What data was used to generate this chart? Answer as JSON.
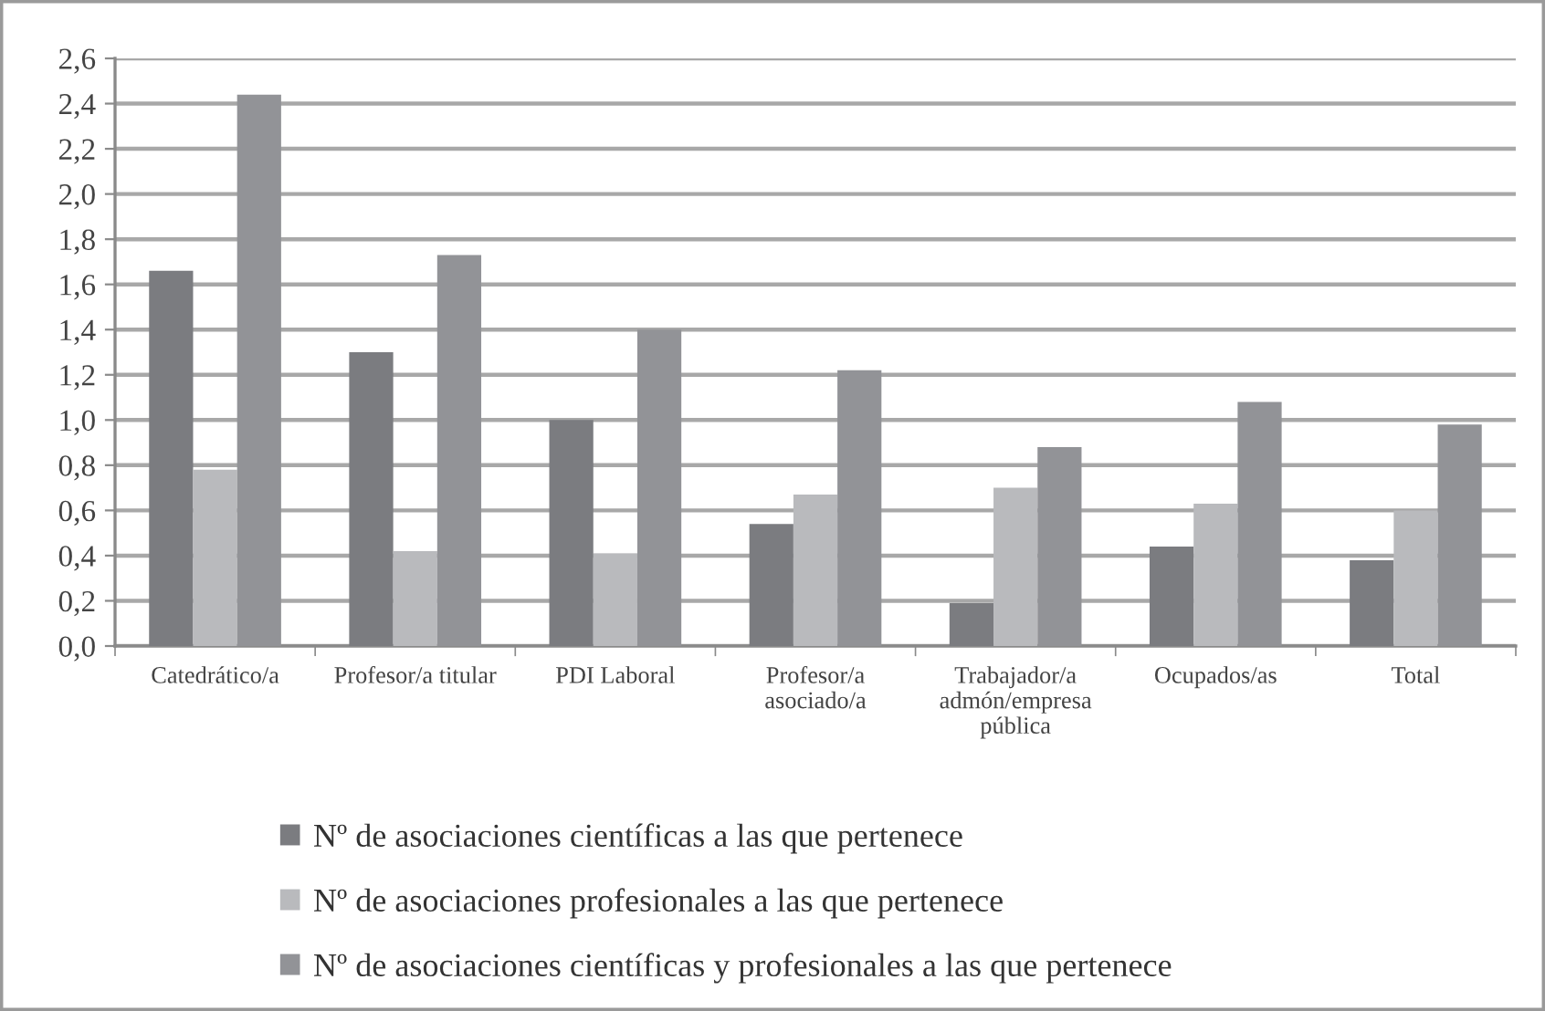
{
  "chart_data": {
    "type": "bar",
    "categories": [
      "Catedrático/a",
      "Profesor/a titular",
      "PDI Laboral",
      "Profesor/a\nasociado/a",
      "Trabajador/a\nadmón/empresa\npública",
      "Ocupados/as",
      "Total"
    ],
    "series": [
      {
        "name": "Nº de asociaciones científicas a las que pertenece",
        "color": "#7b7c80",
        "values": [
          1.66,
          1.3,
          1.0,
          0.54,
          0.19,
          0.44,
          0.38
        ]
      },
      {
        "name": "Nº de asociaciones profesionales a las que pertenece",
        "color": "#b9babd",
        "values": [
          0.78,
          0.42,
          0.41,
          0.67,
          0.7,
          0.63,
          0.6
        ]
      },
      {
        "name": "Nº de asociaciones científicas y profesionales a las que pertenece",
        "color": "#929397",
        "values": [
          2.44,
          1.73,
          1.4,
          1.22,
          0.88,
          1.08,
          0.98
        ]
      }
    ],
    "ylim": [
      0,
      2.6
    ],
    "yticks": [
      {
        "value": 0,
        "label": "0,0"
      },
      {
        "value": 0.2,
        "label": "0,2"
      },
      {
        "value": 0.4,
        "label": "0,4"
      },
      {
        "value": 0.6,
        "label": "0,6"
      },
      {
        "value": 0.8,
        "label": "0,8"
      },
      {
        "value": 1.0,
        "label": "1,0"
      },
      {
        "value": 1.2,
        "label": "1,2"
      },
      {
        "value": 1.4,
        "label": "1,4"
      },
      {
        "value": 1.6,
        "label": "1,6"
      },
      {
        "value": 1.8,
        "label": "1,8"
      },
      {
        "value": 2.0,
        "label": "2,0"
      },
      {
        "value": 2.2,
        "label": "2,2"
      },
      {
        "value": 2.4,
        "label": "2,4"
      },
      {
        "value": 2.6,
        "label": "2,6"
      }
    ],
    "grid": "y",
    "legend": "bottom"
  }
}
